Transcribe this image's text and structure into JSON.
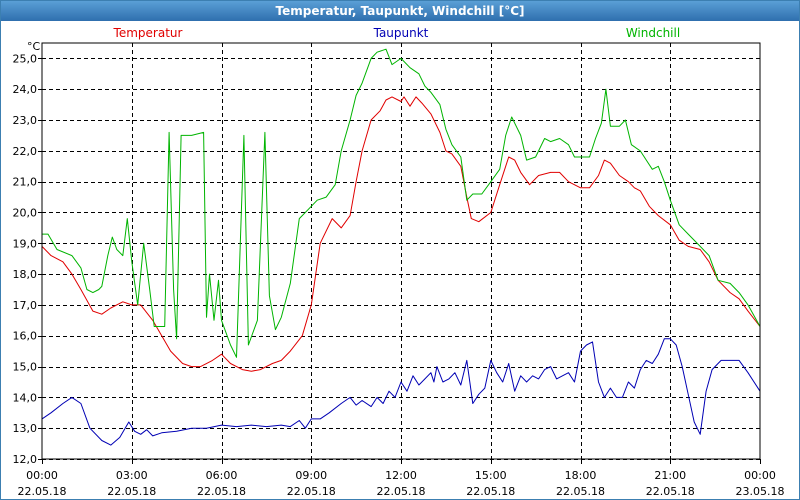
{
  "window": {
    "title": "Temperatur, Taupunkt, Windchill [°C]"
  },
  "colors": {
    "temperatur": "#e00000",
    "taupunkt": "#0000b4",
    "windchill": "#00b400",
    "grid": "#000000",
    "frame": "#3c7fb1"
  },
  "chart_data": {
    "type": "line",
    "title": "Temperatur, Taupunkt, Windchill [°C]",
    "ylabel": "°C",
    "xlabel": "",
    "ylim": [
      12,
      25.5
    ],
    "yticks": [
      12.0,
      13.0,
      14.0,
      15.0,
      16.0,
      17.0,
      18.0,
      19.0,
      20.0,
      21.0,
      22.0,
      23.0,
      24.0,
      25.0
    ],
    "ytick_labels": [
      "12,0",
      "13,0",
      "14,0",
      "15,0",
      "16,0",
      "17,0",
      "18,0",
      "19,0",
      "20,0",
      "21,0",
      "22,0",
      "23,0",
      "24,0",
      "25,0"
    ],
    "xlim": [
      0,
      24
    ],
    "xticks": [
      0,
      3,
      6,
      9,
      12,
      15,
      18,
      21,
      24
    ],
    "xtick_labels": [
      [
        "00:00",
        "22.05.18"
      ],
      [
        "03:00",
        "22.05.18"
      ],
      [
        "06:00",
        "22.05.18"
      ],
      [
        "09:00",
        "22.05.18"
      ],
      [
        "12:00",
        "22.05.18"
      ],
      [
        "15:00",
        "22.05.18"
      ],
      [
        "18:00",
        "22.05.18"
      ],
      [
        "21:00",
        "22.05.18"
      ],
      [
        "00:00",
        "23.05.18"
      ]
    ],
    "grid": true,
    "legend": [
      "Temperatur",
      "Taupunkt",
      "Windchill"
    ],
    "series": [
      {
        "name": "Temperatur",
        "color": "#e00000",
        "points": [
          [
            0,
            18.9
          ],
          [
            0.3,
            18.6
          ],
          [
            0.7,
            18.4
          ],
          [
            1,
            18.0
          ],
          [
            1.3,
            17.5
          ],
          [
            1.7,
            16.8
          ],
          [
            2,
            16.7
          ],
          [
            2.3,
            16.9
          ],
          [
            2.7,
            17.1
          ],
          [
            3,
            17.0
          ],
          [
            3.3,
            17.0
          ],
          [
            3.7,
            16.5
          ],
          [
            4,
            16.0
          ],
          [
            4.3,
            15.5
          ],
          [
            4.7,
            15.1
          ],
          [
            5,
            15.0
          ],
          [
            5.3,
            15.0
          ],
          [
            5.7,
            15.2
          ],
          [
            6,
            15.4
          ],
          [
            6.3,
            15.1
          ],
          [
            6.7,
            14.9
          ],
          [
            7,
            14.85
          ],
          [
            7.3,
            14.9
          ],
          [
            7.7,
            15.1
          ],
          [
            8,
            15.2
          ],
          [
            8.3,
            15.5
          ],
          [
            8.7,
            16.0
          ],
          [
            9,
            17.0
          ],
          [
            9.3,
            19.0
          ],
          [
            9.7,
            19.8
          ],
          [
            10,
            19.5
          ],
          [
            10.3,
            19.9
          ],
          [
            10.5,
            21.0
          ],
          [
            10.7,
            22.0
          ],
          [
            11,
            23.0
          ],
          [
            11.3,
            23.3
          ],
          [
            11.5,
            23.65
          ],
          [
            11.7,
            23.75
          ],
          [
            12,
            23.6
          ],
          [
            12.1,
            23.75
          ],
          [
            12.3,
            23.45
          ],
          [
            12.5,
            23.75
          ],
          [
            12.7,
            23.55
          ],
          [
            13,
            23.2
          ],
          [
            13.3,
            22.6
          ],
          [
            13.5,
            22.0
          ],
          [
            13.7,
            21.9
          ],
          [
            14,
            21.5
          ],
          [
            14.2,
            20.5
          ],
          [
            14.35,
            19.8
          ],
          [
            14.6,
            19.7
          ],
          [
            15,
            20.0
          ],
          [
            15.3,
            20.9
          ],
          [
            15.6,
            21.8
          ],
          [
            15.8,
            21.7
          ],
          [
            16,
            21.3
          ],
          [
            16.3,
            20.9
          ],
          [
            16.6,
            21.2
          ],
          [
            17,
            21.3
          ],
          [
            17.3,
            21.3
          ],
          [
            17.6,
            21.0
          ],
          [
            18,
            20.8
          ],
          [
            18.3,
            20.8
          ],
          [
            18.6,
            21.2
          ],
          [
            18.8,
            21.7
          ],
          [
            19,
            21.6
          ],
          [
            19.3,
            21.2
          ],
          [
            19.6,
            21.0
          ],
          [
            19.8,
            20.8
          ],
          [
            20,
            20.7
          ],
          [
            20.3,
            20.2
          ],
          [
            20.6,
            19.9
          ],
          [
            21,
            19.6
          ],
          [
            21.3,
            19.1
          ],
          [
            21.6,
            18.9
          ],
          [
            22,
            18.8
          ],
          [
            22.3,
            18.4
          ],
          [
            22.6,
            17.8
          ],
          [
            23,
            17.4
          ],
          [
            23.3,
            17.2
          ],
          [
            23.6,
            16.8
          ],
          [
            24,
            16.3
          ]
        ]
      },
      {
        "name": "Taupunkt",
        "color": "#0000b4",
        "points": [
          [
            0,
            13.3
          ],
          [
            0.3,
            13.5
          ],
          [
            0.7,
            13.8
          ],
          [
            1,
            14.0
          ],
          [
            1.3,
            13.8
          ],
          [
            1.6,
            13.0
          ],
          [
            2,
            12.6
          ],
          [
            2.3,
            12.45
          ],
          [
            2.6,
            12.7
          ],
          [
            2.9,
            13.2
          ],
          [
            3.1,
            12.9
          ],
          [
            3.3,
            12.8
          ],
          [
            3.5,
            12.95
          ],
          [
            3.7,
            12.75
          ],
          [
            4,
            12.85
          ],
          [
            4.5,
            12.9
          ],
          [
            5,
            13.0
          ],
          [
            5.5,
            13.0
          ],
          [
            6,
            13.1
          ],
          [
            6.5,
            13.05
          ],
          [
            7,
            13.1
          ],
          [
            7.5,
            13.05
          ],
          [
            8,
            13.1
          ],
          [
            8.3,
            13.05
          ],
          [
            8.6,
            13.25
          ],
          [
            8.8,
            13.0
          ],
          [
            9,
            13.3
          ],
          [
            9.3,
            13.3
          ],
          [
            9.6,
            13.5
          ],
          [
            10,
            13.8
          ],
          [
            10.3,
            14.0
          ],
          [
            10.5,
            13.75
          ],
          [
            10.7,
            13.9
          ],
          [
            11,
            13.7
          ],
          [
            11.2,
            14.0
          ],
          [
            11.4,
            13.8
          ],
          [
            11.6,
            14.2
          ],
          [
            11.8,
            14.0
          ],
          [
            12,
            14.5
          ],
          [
            12.2,
            14.2
          ],
          [
            12.4,
            14.7
          ],
          [
            12.6,
            14.4
          ],
          [
            12.8,
            14.6
          ],
          [
            13,
            14.8
          ],
          [
            13.1,
            14.5
          ],
          [
            13.2,
            15.0
          ],
          [
            13.4,
            14.5
          ],
          [
            13.6,
            14.6
          ],
          [
            13.8,
            14.8
          ],
          [
            14,
            14.4
          ],
          [
            14.2,
            15.2
          ],
          [
            14.4,
            13.8
          ],
          [
            14.6,
            14.1
          ],
          [
            14.8,
            14.3
          ],
          [
            15,
            15.2
          ],
          [
            15.2,
            14.8
          ],
          [
            15.4,
            14.5
          ],
          [
            15.6,
            15.1
          ],
          [
            15.8,
            14.2
          ],
          [
            16,
            14.7
          ],
          [
            16.2,
            14.5
          ],
          [
            16.4,
            14.7
          ],
          [
            16.6,
            14.6
          ],
          [
            16.8,
            14.9
          ],
          [
            17,
            15.0
          ],
          [
            17.2,
            14.6
          ],
          [
            17.4,
            14.7
          ],
          [
            17.6,
            14.8
          ],
          [
            17.8,
            14.5
          ],
          [
            18,
            15.5
          ],
          [
            18.2,
            15.7
          ],
          [
            18.4,
            15.8
          ],
          [
            18.6,
            14.5
          ],
          [
            18.8,
            14.0
          ],
          [
            19,
            14.3
          ],
          [
            19.2,
            14.0
          ],
          [
            19.4,
            14.0
          ],
          [
            19.6,
            14.5
          ],
          [
            19.8,
            14.3
          ],
          [
            20,
            14.9
          ],
          [
            20.2,
            15.2
          ],
          [
            20.4,
            15.1
          ],
          [
            20.6,
            15.4
          ],
          [
            20.8,
            15.9
          ],
          [
            21,
            15.9
          ],
          [
            21.2,
            15.7
          ],
          [
            21.4,
            15.0
          ],
          [
            21.6,
            14.1
          ],
          [
            21.8,
            13.2
          ],
          [
            22,
            12.8
          ],
          [
            22.2,
            14.2
          ],
          [
            22.4,
            14.9
          ],
          [
            22.7,
            15.2
          ],
          [
            23,
            15.2
          ],
          [
            23.3,
            15.2
          ],
          [
            23.6,
            14.8
          ],
          [
            24,
            14.2
          ]
        ]
      },
      {
        "name": "Windchill",
        "color": "#00b400",
        "points": [
          [
            0,
            19.3
          ],
          [
            0.2,
            19.3
          ],
          [
            0.5,
            18.8
          ],
          [
            1,
            18.6
          ],
          [
            1.3,
            18.2
          ],
          [
            1.5,
            17.5
          ],
          [
            1.7,
            17.4
          ],
          [
            1.9,
            17.5
          ],
          [
            2,
            17.6
          ],
          [
            2.2,
            18.6
          ],
          [
            2.35,
            19.2
          ],
          [
            2.5,
            18.8
          ],
          [
            2.7,
            18.6
          ],
          [
            2.85,
            19.8
          ],
          [
            3,
            18.4
          ],
          [
            3.2,
            17.0
          ],
          [
            3.4,
            19.0
          ],
          [
            3.6,
            17.5
          ],
          [
            3.75,
            16.3
          ],
          [
            4,
            16.3
          ],
          [
            4.1,
            16.3
          ],
          [
            4.25,
            22.6
          ],
          [
            4.4,
            17.5
          ],
          [
            4.5,
            15.9
          ],
          [
            4.65,
            22.5
          ],
          [
            5,
            22.5
          ],
          [
            5.4,
            22.6
          ],
          [
            5.5,
            16.6
          ],
          [
            5.6,
            18.0
          ],
          [
            5.75,
            16.5
          ],
          [
            5.9,
            17.8
          ],
          [
            6,
            16.5
          ],
          [
            6.3,
            15.7
          ],
          [
            6.5,
            15.3
          ],
          [
            6.75,
            22.5
          ],
          [
            6.9,
            15.7
          ],
          [
            7.2,
            16.5
          ],
          [
            7.45,
            22.6
          ],
          [
            7.6,
            17.3
          ],
          [
            7.8,
            16.2
          ],
          [
            8,
            16.6
          ],
          [
            8.3,
            17.7
          ],
          [
            8.6,
            19.8
          ],
          [
            9,
            20.2
          ],
          [
            9.2,
            20.4
          ],
          [
            9.5,
            20.5
          ],
          [
            9.8,
            20.9
          ],
          [
            10,
            22.0
          ],
          [
            10.3,
            23.0
          ],
          [
            10.5,
            23.8
          ],
          [
            10.7,
            24.2
          ],
          [
            11,
            25.0
          ],
          [
            11.2,
            25.2
          ],
          [
            11.5,
            25.3
          ],
          [
            11.7,
            24.8
          ],
          [
            12,
            25.0
          ],
          [
            12.3,
            24.7
          ],
          [
            12.6,
            24.5
          ],
          [
            12.8,
            24.1
          ],
          [
            13,
            23.9
          ],
          [
            13.3,
            23.5
          ],
          [
            13.5,
            22.7
          ],
          [
            13.7,
            22.2
          ],
          [
            14,
            21.8
          ],
          [
            14.2,
            20.4
          ],
          [
            14.4,
            20.6
          ],
          [
            14.7,
            20.6
          ],
          [
            15,
            21.0
          ],
          [
            15.3,
            21.4
          ],
          [
            15.5,
            22.5
          ],
          [
            15.7,
            23.1
          ],
          [
            16,
            22.5
          ],
          [
            16.2,
            21.7
          ],
          [
            16.5,
            21.8
          ],
          [
            16.8,
            22.4
          ],
          [
            17,
            22.3
          ],
          [
            17.3,
            22.4
          ],
          [
            17.6,
            22.2
          ],
          [
            17.8,
            21.8
          ],
          [
            18,
            21.8
          ],
          [
            18.3,
            21.8
          ],
          [
            18.5,
            22.4
          ],
          [
            18.7,
            22.9
          ],
          [
            18.85,
            24.0
          ],
          [
            19,
            22.8
          ],
          [
            19.3,
            22.8
          ],
          [
            19.5,
            23.0
          ],
          [
            19.7,
            22.2
          ],
          [
            20,
            22.0
          ],
          [
            20.2,
            21.7
          ],
          [
            20.4,
            21.4
          ],
          [
            20.6,
            21.5
          ],
          [
            20.8,
            21.0
          ],
          [
            21,
            20.4
          ],
          [
            21.3,
            19.6
          ],
          [
            21.6,
            19.3
          ],
          [
            22,
            18.9
          ],
          [
            22.3,
            18.6
          ],
          [
            22.6,
            17.8
          ],
          [
            23,
            17.7
          ],
          [
            23.3,
            17.4
          ],
          [
            23.6,
            17.0
          ],
          [
            24,
            16.3
          ]
        ]
      }
    ]
  }
}
